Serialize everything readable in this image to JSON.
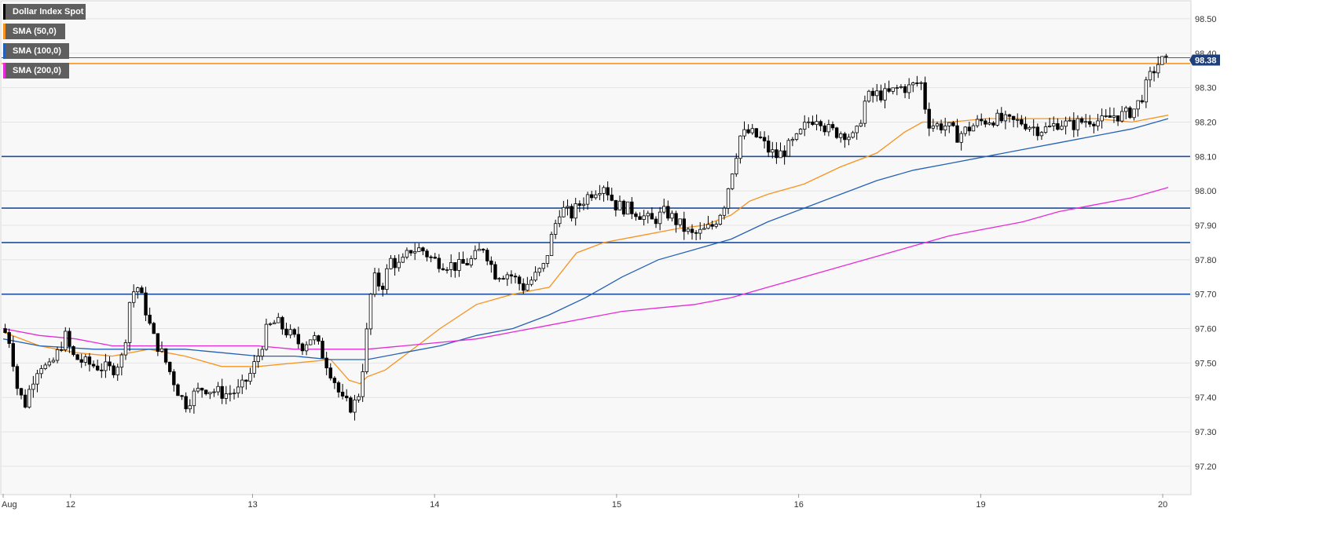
{
  "chart_data": {
    "type": "candlestick",
    "instrument": "Dollar Index Spot",
    "legend": [
      {
        "label": "Dollar Index Spot",
        "color": "#000000"
      },
      {
        "label": "SMA (50,0)",
        "color": "#f7931e"
      },
      {
        "label": "SMA (100,0)",
        "color": "#2461b5"
      },
      {
        "label": "SMA (200,0)",
        "color": "#e62ad8"
      }
    ],
    "ylim": [
      97.12,
      98.55
    ],
    "yticks": [
      {
        "value": 97.2,
        "label": "97.20"
      },
      {
        "value": 97.3,
        "label": "97.30"
      },
      {
        "value": 97.4,
        "label": "97.40"
      },
      {
        "value": 97.5,
        "label": "97.50"
      },
      {
        "value": 97.6,
        "label": "97.60"
      },
      {
        "value": 97.7,
        "label": "97.70"
      },
      {
        "value": 97.8,
        "label": "97.80"
      },
      {
        "value": 97.9,
        "label": "97.90"
      },
      {
        "value": 98.0,
        "label": "98.00"
      },
      {
        "value": 98.1,
        "label": "98.10"
      },
      {
        "value": 98.2,
        "label": "98.20"
      },
      {
        "value": 98.3,
        "label": "98.30"
      },
      {
        "value": 98.4,
        "label": "98.40"
      },
      {
        "value": 98.5,
        "label": "98.50"
      }
    ],
    "xlim": [
      0,
      6.4
    ],
    "xticks": [
      {
        "x": 0,
        "label": "Aug"
      },
      {
        "x": 0.37,
        "label": "12"
      },
      {
        "x": 1.37,
        "label": "13"
      },
      {
        "x": 2.37,
        "label": "14"
      },
      {
        "x": 3.37,
        "label": "15"
      },
      {
        "x": 4.37,
        "label": "16"
      },
      {
        "x": 5.37,
        "label": "19"
      },
      {
        "x": 6.37,
        "label": "20"
      }
    ],
    "horizontal_levels": [
      {
        "value": 98.1,
        "color": "#1f4e9c"
      },
      {
        "value": 97.95,
        "color": "#1f4e9c"
      },
      {
        "value": 97.85,
        "color": "#1f4e9c"
      },
      {
        "value": 97.7,
        "color": "#1f4e9c"
      },
      {
        "value": 98.37,
        "color": "#f7931e"
      }
    ],
    "last_price": {
      "value": 98.38,
      "label": "98.38"
    },
    "price_path": [
      [
        0.0,
        97.6
      ],
      [
        0.04,
        97.56
      ],
      [
        0.08,
        97.42
      ],
      [
        0.12,
        97.38
      ],
      [
        0.16,
        97.45
      ],
      [
        0.2,
        97.5
      ],
      [
        0.25,
        97.48
      ],
      [
        0.3,
        97.53
      ],
      [
        0.34,
        97.58
      ],
      [
        0.38,
        97.52
      ],
      [
        0.45,
        97.5
      ],
      [
        0.52,
        97.49
      ],
      [
        0.6,
        97.48
      ],
      [
        0.66,
        97.52
      ],
      [
        0.7,
        97.7
      ],
      [
        0.74,
        97.72
      ],
      [
        0.78,
        97.66
      ],
      [
        0.82,
        97.58
      ],
      [
        0.88,
        97.52
      ],
      [
        0.92,
        97.47
      ],
      [
        0.96,
        97.42
      ],
      [
        1.0,
        97.38
      ],
      [
        1.05,
        97.41
      ],
      [
        1.1,
        97.43
      ],
      [
        1.15,
        97.42
      ],
      [
        1.22,
        97.41
      ],
      [
        1.3,
        97.42
      ],
      [
        1.36,
        97.47
      ],
      [
        1.4,
        97.52
      ],
      [
        1.45,
        97.6
      ],
      [
        1.5,
        97.62
      ],
      [
        1.58,
        97.58
      ],
      [
        1.64,
        97.55
      ],
      [
        1.7,
        97.58
      ],
      [
        1.76,
        97.52
      ],
      [
        1.82,
        97.45
      ],
      [
        1.86,
        97.39
      ],
      [
        1.92,
        97.37
      ],
      [
        1.96,
        97.42
      ],
      [
        2.0,
        97.6
      ],
      [
        2.03,
        97.75
      ],
      [
        2.08,
        97.72
      ],
      [
        2.13,
        97.8
      ],
      [
        2.18,
        97.78
      ],
      [
        2.24,
        97.83
      ],
      [
        2.3,
        97.83
      ],
      [
        2.36,
        97.8
      ],
      [
        2.42,
        97.79
      ],
      [
        2.5,
        97.78
      ],
      [
        2.58,
        97.8
      ],
      [
        2.64,
        97.84
      ],
      [
        2.7,
        97.76
      ],
      [
        2.78,
        97.76
      ],
      [
        2.86,
        97.72
      ],
      [
        2.92,
        97.75
      ],
      [
        2.97,
        97.78
      ],
      [
        3.02,
        97.88
      ],
      [
        3.06,
        97.95
      ],
      [
        3.12,
        97.93
      ],
      [
        3.18,
        97.97
      ],
      [
        3.24,
        98.0
      ],
      [
        3.3,
        98.02
      ],
      [
        3.36,
        97.96
      ],
      [
        3.42,
        97.95
      ],
      [
        3.48,
        97.94
      ],
      [
        3.56,
        97.91
      ],
      [
        3.64,
        97.94
      ],
      [
        3.72,
        97.9
      ],
      [
        3.78,
        97.87
      ],
      [
        3.84,
        97.88
      ],
      [
        3.9,
        97.9
      ],
      [
        3.96,
        97.96
      ],
      [
        4.0,
        98.05
      ],
      [
        4.05,
        98.16
      ],
      [
        4.1,
        98.17
      ],
      [
        4.16,
        98.15
      ],
      [
        4.2,
        98.12
      ],
      [
        4.25,
        98.1
      ],
      [
        4.3,
        98.12
      ],
      [
        4.36,
        98.15
      ],
      [
        4.42,
        98.2
      ],
      [
        4.48,
        98.22
      ],
      [
        4.52,
        98.18
      ],
      [
        4.57,
        98.17
      ],
      [
        4.62,
        98.17
      ],
      [
        4.68,
        98.15
      ],
      [
        4.74,
        98.27
      ],
      [
        4.8,
        98.28
      ],
      [
        4.86,
        98.28
      ],
      [
        4.92,
        98.3
      ],
      [
        4.98,
        98.3
      ],
      [
        5.04,
        98.32
      ],
      [
        5.08,
        98.2
      ],
      [
        5.12,
        98.19
      ],
      [
        5.18,
        98.19
      ],
      [
        5.24,
        98.16
      ],
      [
        5.3,
        98.18
      ],
      [
        5.36,
        98.2
      ],
      [
        5.44,
        98.21
      ],
      [
        5.52,
        98.2
      ],
      [
        5.6,
        98.2
      ],
      [
        5.68,
        98.18
      ],
      [
        5.74,
        98.18
      ],
      [
        5.8,
        98.2
      ],
      [
        5.86,
        98.19
      ],
      [
        5.92,
        98.2
      ],
      [
        5.98,
        98.21
      ],
      [
        6.04,
        98.2
      ],
      [
        6.1,
        98.22
      ],
      [
        6.16,
        98.22
      ],
      [
        6.22,
        98.24
      ],
      [
        6.26,
        98.28
      ],
      [
        6.3,
        98.33
      ],
      [
        6.33,
        98.36
      ],
      [
        6.36,
        98.38
      ],
      [
        6.38,
        98.37
      ],
      [
        6.4,
        98.38
      ]
    ],
    "sma_series": [
      {
        "key": "sma50",
        "color": "#f7931e",
        "points": [
          [
            0.0,
            97.59
          ],
          [
            0.2,
            97.55
          ],
          [
            0.4,
            97.53
          ],
          [
            0.6,
            97.52
          ],
          [
            0.8,
            97.54
          ],
          [
            1.0,
            97.52
          ],
          [
            1.2,
            97.49
          ],
          [
            1.4,
            97.49
          ],
          [
            1.6,
            97.5
          ],
          [
            1.8,
            97.51
          ],
          [
            1.9,
            97.45
          ],
          [
            1.96,
            97.44
          ],
          [
            2.0,
            97.46
          ],
          [
            2.1,
            97.48
          ],
          [
            2.2,
            97.52
          ],
          [
            2.4,
            97.6
          ],
          [
            2.6,
            97.67
          ],
          [
            2.8,
            97.7
          ],
          [
            3.0,
            97.72
          ],
          [
            3.15,
            97.82
          ],
          [
            3.3,
            97.85
          ],
          [
            3.5,
            97.87
          ],
          [
            3.7,
            97.89
          ],
          [
            3.85,
            97.9
          ],
          [
            4.0,
            97.93
          ],
          [
            4.1,
            97.97
          ],
          [
            4.2,
            97.99
          ],
          [
            4.4,
            98.02
          ],
          [
            4.6,
            98.07
          ],
          [
            4.8,
            98.11
          ],
          [
            4.95,
            98.17
          ],
          [
            5.05,
            98.2
          ],
          [
            5.2,
            98.2
          ],
          [
            5.4,
            98.21
          ],
          [
            5.6,
            98.21
          ],
          [
            5.8,
            98.21
          ],
          [
            6.0,
            98.21
          ],
          [
            6.2,
            98.2
          ],
          [
            6.4,
            98.22
          ]
        ]
      },
      {
        "key": "sma100",
        "color": "#2461b5",
        "points": [
          [
            0.0,
            97.57
          ],
          [
            0.2,
            97.55
          ],
          [
            0.5,
            97.54
          ],
          [
            0.8,
            97.54
          ],
          [
            1.0,
            97.54
          ],
          [
            1.2,
            97.53
          ],
          [
            1.4,
            97.52
          ],
          [
            1.6,
            97.52
          ],
          [
            1.8,
            97.51
          ],
          [
            2.0,
            97.51
          ],
          [
            2.2,
            97.53
          ],
          [
            2.4,
            97.55
          ],
          [
            2.6,
            97.58
          ],
          [
            2.8,
            97.6
          ],
          [
            3.0,
            97.64
          ],
          [
            3.2,
            97.69
          ],
          [
            3.4,
            97.75
          ],
          [
            3.6,
            97.8
          ],
          [
            3.8,
            97.83
          ],
          [
            4.0,
            97.86
          ],
          [
            4.2,
            97.91
          ],
          [
            4.4,
            97.95
          ],
          [
            4.6,
            97.99
          ],
          [
            4.8,
            98.03
          ],
          [
            5.0,
            98.06
          ],
          [
            5.2,
            98.08
          ],
          [
            5.4,
            98.1
          ],
          [
            5.6,
            98.12
          ],
          [
            5.8,
            98.14
          ],
          [
            6.0,
            98.16
          ],
          [
            6.2,
            98.18
          ],
          [
            6.4,
            98.21
          ]
        ]
      },
      {
        "key": "sma200",
        "color": "#e62ad8",
        "points": [
          [
            0.0,
            97.6
          ],
          [
            0.2,
            97.58
          ],
          [
            0.4,
            97.57
          ],
          [
            0.6,
            97.55
          ],
          [
            0.8,
            97.55
          ],
          [
            1.0,
            97.55
          ],
          [
            1.2,
            97.55
          ],
          [
            1.4,
            97.55
          ],
          [
            1.6,
            97.54
          ],
          [
            1.8,
            97.54
          ],
          [
            2.0,
            97.54
          ],
          [
            2.2,
            97.55
          ],
          [
            2.4,
            97.56
          ],
          [
            2.6,
            97.57
          ],
          [
            2.8,
            97.59
          ],
          [
            3.0,
            97.61
          ],
          [
            3.2,
            97.63
          ],
          [
            3.4,
            97.65
          ],
          [
            3.6,
            97.66
          ],
          [
            3.8,
            97.67
          ],
          [
            4.0,
            97.69
          ],
          [
            4.2,
            97.72
          ],
          [
            4.4,
            97.75
          ],
          [
            4.6,
            97.78
          ],
          [
            4.8,
            97.81
          ],
          [
            5.0,
            97.84
          ],
          [
            5.2,
            97.87
          ],
          [
            5.4,
            97.89
          ],
          [
            5.6,
            97.91
          ],
          [
            5.8,
            97.94
          ],
          [
            6.0,
            97.96
          ],
          [
            6.2,
            97.98
          ],
          [
            6.4,
            98.01
          ]
        ]
      }
    ],
    "grid": true
  }
}
